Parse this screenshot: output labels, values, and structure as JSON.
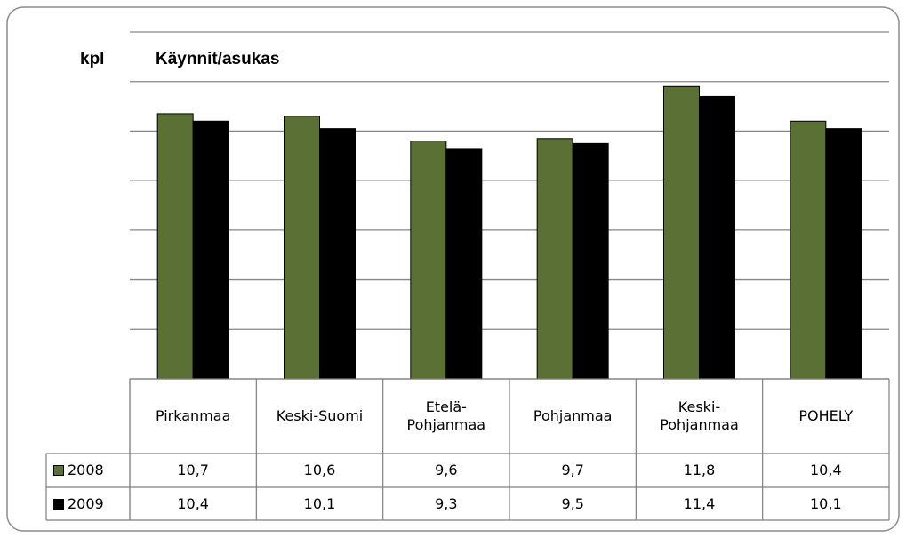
{
  "chart_data": {
    "type": "bar",
    "title": "Käynnit/asukas",
    "y_label": "kpl",
    "categories": [
      "Pirkanmaa",
      "Keski-Suomi",
      "Etelä-\nPohjanmaa",
      "Pohjanmaa",
      "Keski-\nPohjanmaa",
      "POHELY"
    ],
    "series": [
      {
        "name": "2008",
        "color": "#5a7034",
        "values": [
          10.7,
          10.6,
          9.6,
          9.7,
          11.8,
          10.4
        ],
        "value_labels": [
          "10,7",
          "10,6",
          "9,6",
          "9,7",
          "11,8",
          "10,4"
        ]
      },
      {
        "name": "2009",
        "color": "#000000",
        "values": [
          10.4,
          10.1,
          9.3,
          9.5,
          11.4,
          10.1
        ],
        "value_labels": [
          "10,4",
          "10,1",
          "9,3",
          "9,5",
          "11,4",
          "10,1"
        ]
      }
    ],
    "ylim": [
      0,
      14
    ],
    "yticks": [
      0,
      2,
      4,
      6,
      8,
      10,
      12,
      14
    ],
    "grid": true
  }
}
